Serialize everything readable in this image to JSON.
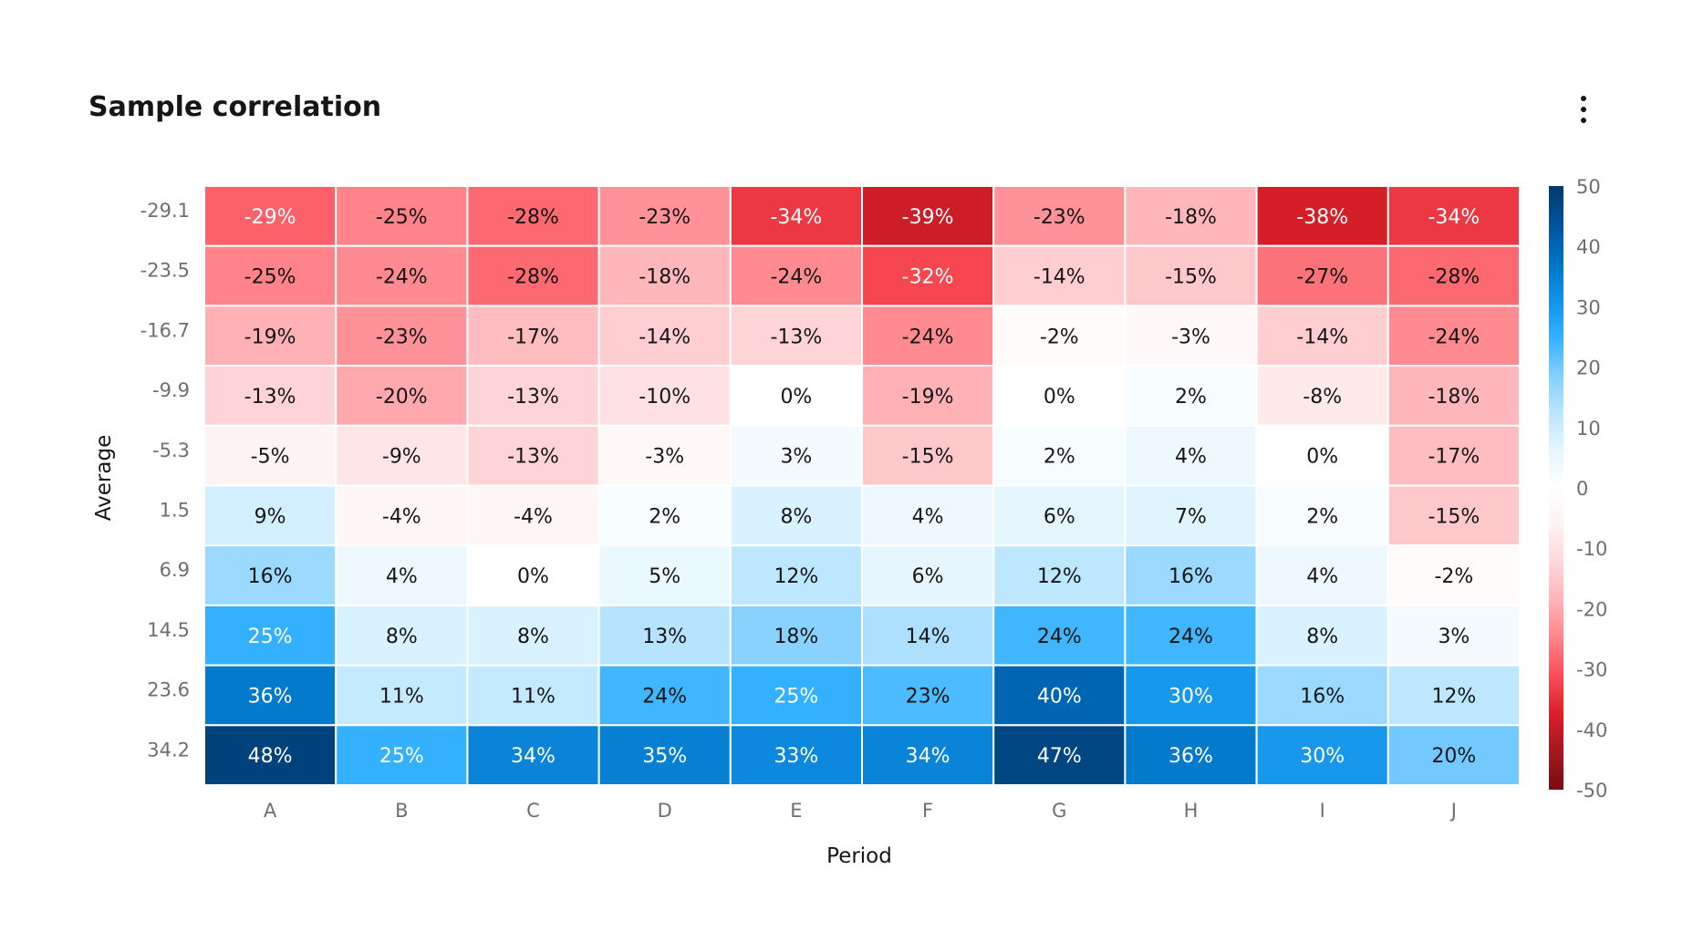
{
  "header": {
    "title": "Sample correlation",
    "menu_icon": "overflow-menu-vertical-icon"
  },
  "chart_data": {
    "type": "heatmap",
    "title": "Sample correlation",
    "xlabel": "Period",
    "ylabel": "Average",
    "x": [
      "A",
      "B",
      "C",
      "D",
      "E",
      "F",
      "G",
      "H",
      "I",
      "J"
    ],
    "y": [
      "-29.1",
      "-23.5",
      "-16.7",
      "-9.9",
      "-5.3",
      "1.5",
      "6.9",
      "14.5",
      "23.6",
      "34.2"
    ],
    "values": [
      [
        -29,
        -25,
        -28,
        -23,
        -34,
        -39,
        -23,
        -18,
        -38,
        -34
      ],
      [
        -25,
        -24,
        -28,
        -18,
        -24,
        -32,
        -14,
        -15,
        -27,
        -28
      ],
      [
        -19,
        -23,
        -17,
        -14,
        -13,
        -24,
        -2,
        -3,
        -14,
        -24
      ],
      [
        -13,
        -20,
        -13,
        -10,
        0,
        -19,
        0,
        2,
        -8,
        -18
      ],
      [
        -5,
        -9,
        -13,
        -3,
        3,
        -15,
        2,
        4,
        0,
        -17
      ],
      [
        9,
        -4,
        -4,
        2,
        8,
        4,
        6,
        7,
        2,
        -15
      ],
      [
        16,
        4,
        0,
        5,
        12,
        6,
        12,
        16,
        4,
        -2
      ],
      [
        25,
        8,
        8,
        13,
        18,
        14,
        24,
        24,
        8,
        3
      ],
      [
        36,
        11,
        11,
        24,
        25,
        23,
        40,
        30,
        16,
        12
      ],
      [
        48,
        25,
        34,
        35,
        33,
        34,
        47,
        36,
        30,
        20
      ]
    ],
    "value_suffix": "%",
    "color_scale": {
      "range": [
        -50,
        50
      ],
      "ticks": [
        "50",
        "40",
        "30",
        "20",
        "10",
        "0",
        "-10",
        "-20",
        "-30",
        "-40",
        "-50"
      ],
      "colors": {
        "neg": [
          "#ffffff",
          "#fff1f1",
          "#ffd7d9",
          "#ffb3b8",
          "#ff8389",
          "#fa4d56",
          "#da1e28",
          "#a2191f",
          "#750e13"
        ],
        "pos": [
          "#ffffff",
          "#e5f6ff",
          "#bae6ff",
          "#82cfff",
          "#33b1ff",
          "#1192e8",
          "#0072c3",
          "#00539a",
          "#003a6d"
        ]
      }
    },
    "grid": false,
    "legend": "right"
  }
}
